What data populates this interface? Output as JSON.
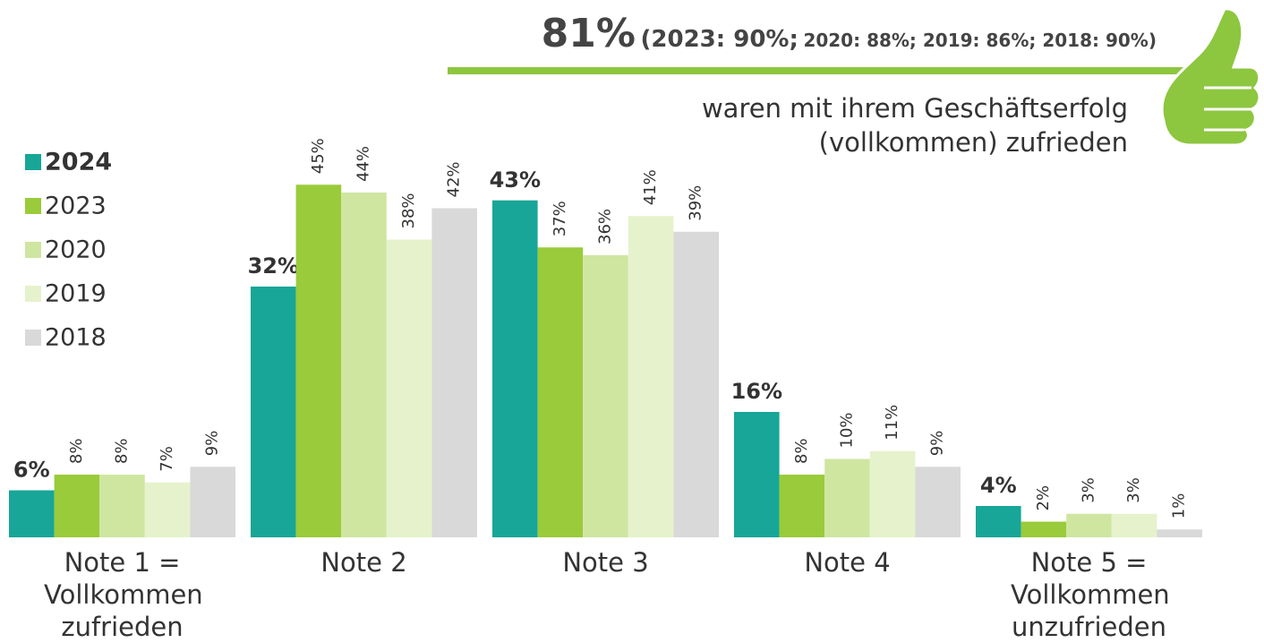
{
  "chart_data": {
    "type": "bar",
    "headline": {
      "main": "81%",
      "part1": "(2023: 90%;",
      "part2": "2020: 88%; 2019: 86%; 2018: 90%)"
    },
    "subtitle": [
      "waren mit ihrem Geschäftserfolg",
      "(vollkommen) zufrieden"
    ],
    "categories": [
      "Note 1 = Vollkommen zufrieden",
      "Note 2",
      "Note 3",
      "Note 4",
      "Note 5 = Vollkommen unzufrieden"
    ],
    "series": [
      {
        "name": "2024",
        "color": "#17a697",
        "values": [
          6,
          32,
          43,
          16,
          4
        ],
        "value_labels": [
          "6%",
          "32%",
          "43%",
          "16%",
          "4%"
        ]
      },
      {
        "name": "2023",
        "color": "#9acb3a",
        "values": [
          8,
          45,
          37,
          8,
          2
        ],
        "value_labels": [
          "8%",
          "45%",
          "37%",
          "8%",
          "2%"
        ]
      },
      {
        "name": "2020",
        "color": "#cfe6a0",
        "values": [
          8,
          44,
          36,
          10,
          3
        ],
        "value_labels": [
          "8%",
          "44%",
          "36%",
          "10%",
          "3%"
        ]
      },
      {
        "name": "2019",
        "color": "#e6f2cc",
        "values": [
          7,
          38,
          41,
          11,
          3
        ],
        "value_labels": [
          "7%",
          "38%",
          "41%",
          "11%",
          "3%"
        ]
      },
      {
        "name": "2018",
        "color": "#d9d9d9",
        "values": [
          9,
          42,
          39,
          9,
          1
        ],
        "value_labels": [
          "9%",
          "42%",
          "39%",
          "9%",
          "1%"
        ]
      }
    ]
  }
}
